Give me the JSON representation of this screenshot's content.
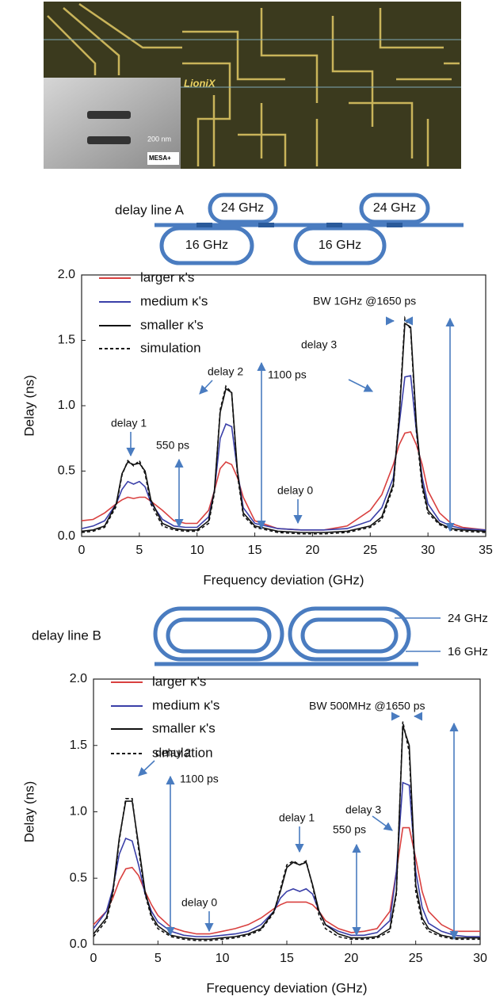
{
  "photo": {
    "logo": "LioniX",
    "scale_label": "200 nm",
    "inset_logo": "MESA+"
  },
  "diagram_a": {
    "title": "delay line A",
    "rings": [
      "24 GHz",
      "16 GHz",
      "16 GHz",
      "24 GHz"
    ]
  },
  "diagram_b": {
    "title": "delay line B",
    "rings": [
      "24 GHz",
      "16 GHz"
    ]
  },
  "chart_data": [
    {
      "type": "line",
      "xlabel": "Frequency deviation (GHz)",
      "ylabel": "Delay (ns)",
      "xlim": [
        0,
        35
      ],
      "ylim": [
        0,
        2
      ],
      "xticks": [
        0,
        5,
        10,
        15,
        20,
        25,
        30,
        35
      ],
      "yticks": [
        {
          "value": 0,
          "label": "0.0"
        },
        0.5,
        {
          "value": 1,
          "label": "1.0"
        },
        1.5,
        {
          "value": 2,
          "label": "2.0"
        }
      ],
      "annotations": [
        "delay 1",
        "550 ps",
        "delay 2",
        "1100 ps",
        "delay 0",
        "delay 3",
        "BW 1GHz @1650 ps"
      ],
      "x": [
        0,
        1,
        2,
        3,
        3.5,
        4,
        4.5,
        5,
        5.5,
        6,
        7,
        8,
        9,
        10,
        11,
        11.5,
        12,
        12.5,
        13,
        13.5,
        14,
        15,
        17,
        19,
        21,
        23,
        25,
        26,
        27,
        27.5,
        28,
        28.5,
        29,
        29.5,
        30,
        31,
        32,
        33,
        35
      ],
      "series": [
        {
          "name": "larger κ's",
          "color": "#d9403f",
          "dash": false,
          "values": [
            0.12,
            0.13,
            0.18,
            0.25,
            0.28,
            0.3,
            0.29,
            0.3,
            0.3,
            0.27,
            0.2,
            0.12,
            0.1,
            0.1,
            0.2,
            0.35,
            0.52,
            0.57,
            0.55,
            0.45,
            0.3,
            0.12,
            0.06,
            0.05,
            0.05,
            0.08,
            0.2,
            0.32,
            0.55,
            0.7,
            0.79,
            0.8,
            0.7,
            0.55,
            0.35,
            0.18,
            0.1,
            0.07,
            0.05
          ]
        },
        {
          "name": "medium κ's",
          "color": "#3a3fa8",
          "dash": false,
          "values": [
            0.06,
            0.08,
            0.12,
            0.25,
            0.36,
            0.42,
            0.4,
            0.42,
            0.38,
            0.26,
            0.13,
            0.08,
            0.07,
            0.07,
            0.15,
            0.35,
            0.75,
            0.86,
            0.84,
            0.5,
            0.22,
            0.1,
            0.06,
            0.05,
            0.05,
            0.06,
            0.12,
            0.22,
            0.45,
            0.85,
            1.22,
            1.23,
            0.8,
            0.45,
            0.25,
            0.12,
            0.08,
            0.06,
            0.05
          ]
        },
        {
          "name": "smaller κ's",
          "color": "#111111",
          "dash": false,
          "values": [
            0.04,
            0.05,
            0.08,
            0.25,
            0.48,
            0.57,
            0.55,
            0.56,
            0.5,
            0.28,
            0.1,
            0.06,
            0.05,
            0.05,
            0.12,
            0.35,
            0.95,
            1.13,
            1.1,
            0.5,
            0.18,
            0.08,
            0.04,
            0.03,
            0.03,
            0.04,
            0.08,
            0.15,
            0.4,
            0.9,
            1.63,
            1.6,
            0.85,
            0.4,
            0.2,
            0.1,
            0.06,
            0.05,
            0.04
          ]
        },
        {
          "name": "simulation",
          "color": "#111111",
          "dash": true,
          "values": [
            0.03,
            0.04,
            0.07,
            0.23,
            0.47,
            0.58,
            0.54,
            0.58,
            0.48,
            0.25,
            0.08,
            0.05,
            0.04,
            0.04,
            0.1,
            0.33,
            0.97,
            1.15,
            1.1,
            0.47,
            0.16,
            0.07,
            0.03,
            0.02,
            0.02,
            0.03,
            0.07,
            0.13,
            0.38,
            0.92,
            1.67,
            1.58,
            0.8,
            0.37,
            0.18,
            0.09,
            0.05,
            0.04,
            0.03
          ]
        }
      ]
    },
    {
      "type": "line",
      "xlabel": "Frequency deviation (GHz)",
      "ylabel": "Delay (ns)",
      "xlim": [
        0,
        30
      ],
      "ylim": [
        0,
        2
      ],
      "xticks": [
        0,
        5,
        10,
        15,
        20,
        25,
        30
      ],
      "yticks": [
        {
          "value": 0,
          "label": "0.0"
        },
        0.5,
        {
          "value": 1,
          "label": "1.0"
        },
        1.5,
        {
          "value": 2,
          "label": "2.0"
        }
      ],
      "annotations": [
        "delay 2",
        "1100 ps",
        "delay 0",
        "delay 1",
        "550 ps",
        "delay 3",
        "BW 500MHz @1650 ps"
      ],
      "x": [
        0,
        1,
        1.5,
        2,
        2.5,
        3,
        3.5,
        4,
        4.5,
        5,
        6,
        7,
        8,
        9,
        10,
        11,
        12,
        13,
        14,
        14.5,
        15,
        15.5,
        16,
        16.5,
        17,
        17.5,
        18,
        19,
        20,
        21,
        22,
        23,
        23.5,
        24,
        24.5,
        25,
        25.5,
        26,
        27,
        28,
        29,
        30
      ],
      "series": [
        {
          "name": "larger κ's",
          "color": "#d9403f",
          "dash": false,
          "values": [
            0.15,
            0.25,
            0.35,
            0.48,
            0.57,
            0.58,
            0.52,
            0.4,
            0.3,
            0.22,
            0.13,
            0.1,
            0.08,
            0.08,
            0.1,
            0.12,
            0.15,
            0.2,
            0.27,
            0.3,
            0.32,
            0.32,
            0.32,
            0.32,
            0.3,
            0.25,
            0.18,
            0.12,
            0.09,
            0.1,
            0.12,
            0.25,
            0.55,
            0.88,
            0.88,
            0.65,
            0.4,
            0.25,
            0.15,
            0.1,
            0.1,
            0.1
          ]
        },
        {
          "name": "medium κ's",
          "color": "#3a3fa8",
          "dash": false,
          "values": [
            0.12,
            0.25,
            0.42,
            0.68,
            0.8,
            0.78,
            0.6,
            0.38,
            0.25,
            0.17,
            0.1,
            0.07,
            0.06,
            0.06,
            0.07,
            0.08,
            0.1,
            0.15,
            0.25,
            0.35,
            0.4,
            0.42,
            0.4,
            0.42,
            0.38,
            0.25,
            0.15,
            0.1,
            0.07,
            0.07,
            0.09,
            0.18,
            0.55,
            1.22,
            1.2,
            0.55,
            0.28,
            0.16,
            0.1,
            0.07,
            0.06,
            0.06
          ]
        },
        {
          "name": "smaller κ's",
          "color": "#111111",
          "dash": false,
          "values": [
            0.08,
            0.2,
            0.4,
            0.8,
            1.08,
            1.08,
            0.75,
            0.4,
            0.22,
            0.14,
            0.07,
            0.05,
            0.04,
            0.04,
            0.05,
            0.06,
            0.08,
            0.12,
            0.25,
            0.4,
            0.58,
            0.62,
            0.6,
            0.62,
            0.45,
            0.25,
            0.15,
            0.08,
            0.05,
            0.05,
            0.06,
            0.12,
            0.4,
            1.65,
            1.5,
            0.45,
            0.2,
            0.12,
            0.07,
            0.05,
            0.05,
            0.05
          ]
        },
        {
          "name": "simulation",
          "color": "#111111",
          "dash": true,
          "values": [
            0.06,
            0.18,
            0.38,
            0.78,
            1.1,
            1.1,
            0.72,
            0.38,
            0.2,
            0.12,
            0.06,
            0.04,
            0.03,
            0.03,
            0.04,
            0.05,
            0.07,
            0.11,
            0.24,
            0.42,
            0.6,
            0.63,
            0.6,
            0.63,
            0.44,
            0.22,
            0.12,
            0.06,
            0.04,
            0.04,
            0.05,
            0.1,
            0.38,
            1.68,
            1.45,
            0.4,
            0.17,
            0.1,
            0.06,
            0.04,
            0.04,
            0.04
          ]
        }
      ]
    }
  ]
}
